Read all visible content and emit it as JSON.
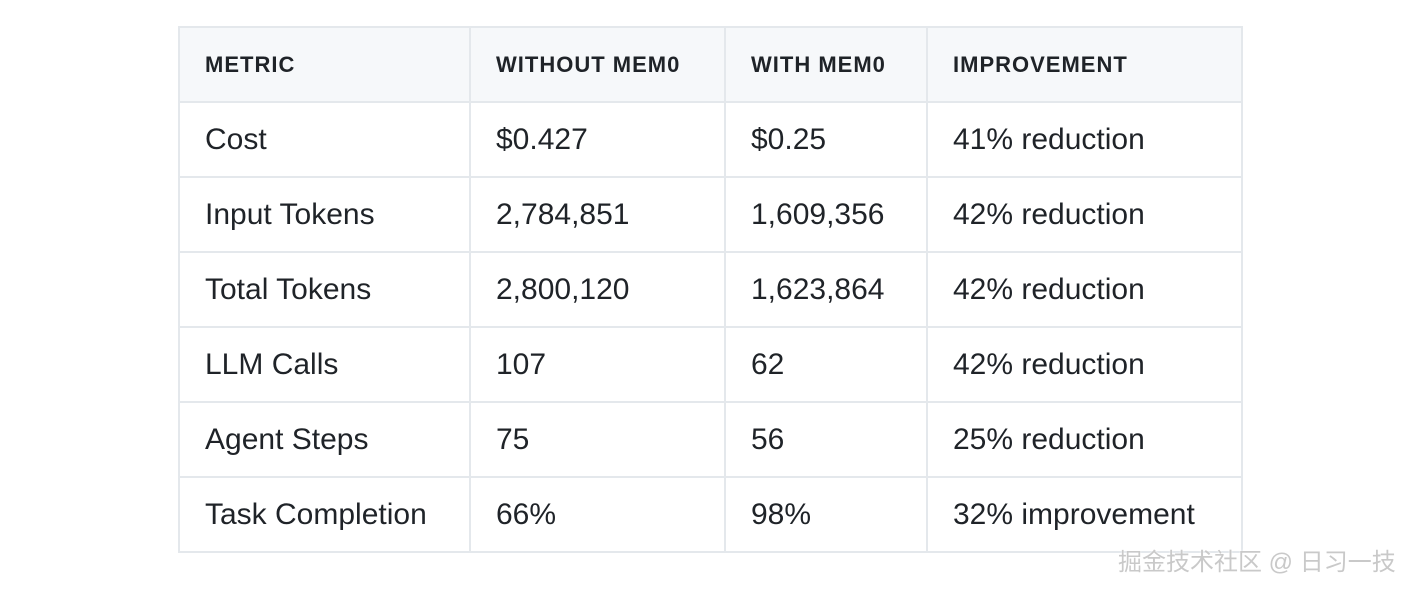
{
  "table": {
    "header": [
      "METRIC",
      "WITHOUT MEM0",
      "WITH MEM0",
      "IMPROVEMENT"
    ],
    "rows": [
      [
        "Cost",
        "$0.427",
        "$0.25",
        "41% reduction"
      ],
      [
        "Input Tokens",
        "2,784,851",
        "1,609,356",
        "42% reduction"
      ],
      [
        "Total Tokens",
        "2,800,120",
        "1,623,864",
        "42% reduction"
      ],
      [
        "LLM Calls",
        "107",
        "62",
        "42% reduction"
      ],
      [
        "Agent Steps",
        "75",
        "56",
        "25% reduction"
      ],
      [
        "Task Completion",
        "66%",
        "98%",
        "32% improvement"
      ]
    ]
  },
  "watermark": "掘金技术社区 @ 日习一技"
}
